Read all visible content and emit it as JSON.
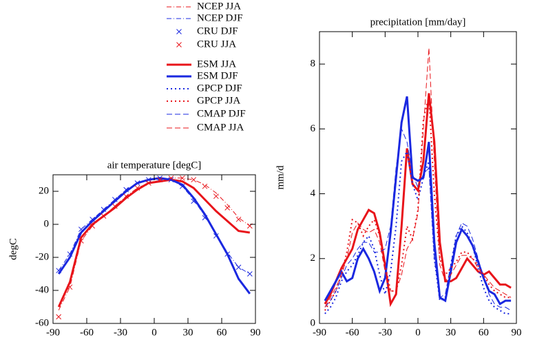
{
  "chart_data": [
    {
      "type": "line",
      "title": "air temperature [degC]",
      "y_label": "degC",
      "xlim": [
        -90,
        90
      ],
      "xticks": [
        -90,
        -60,
        -30,
        0,
        30,
        60,
        90
      ],
      "ylim": [
        -60,
        30
      ],
      "yticks": [
        -60,
        -40,
        -20,
        0,
        20
      ],
      "x": [
        -85,
        -75,
        -65,
        -55,
        -45,
        -35,
        -25,
        -15,
        -5,
        5,
        15,
        25,
        35,
        45,
        55,
        65,
        75,
        85
      ],
      "series": [
        {
          "name": "NCEP JJA",
          "color": "#e8141a",
          "style": "dashdot",
          "width": 1,
          "values": [
            -52,
            -38,
            -10,
            -1,
            5,
            11,
            17,
            22,
            25,
            27,
            28,
            28,
            27,
            24,
            19,
            12,
            4,
            -1
          ]
        },
        {
          "name": "NCEP DJF",
          "color": "#1a28e0",
          "style": "dashdot",
          "width": 1,
          "values": [
            -28,
            -18,
            -3,
            3,
            9,
            15,
            21,
            25,
            27,
            28,
            27,
            23,
            15,
            5,
            -6,
            -17,
            -26,
            -30
          ]
        },
        {
          "name": "CRU DJF",
          "color": "#1a28e0",
          "style": "markers",
          "width": 1,
          "values": [
            -28,
            -18,
            -3,
            3,
            9,
            15,
            21,
            25,
            27,
            28,
            27,
            23,
            14,
            4,
            -7,
            -18,
            -26,
            -30
          ]
        },
        {
          "name": "CRU JJA",
          "color": "#e8141a",
          "style": "markers",
          "width": 1,
          "values": [
            -56,
            -38,
            -10,
            -1,
            5,
            11,
            17,
            22,
            25,
            27,
            28,
            28,
            27,
            23,
            17,
            10,
            3,
            -1
          ]
        },
        {
          "name": "ESM JJA",
          "color": "#e8141a",
          "style": "solid",
          "width": 3,
          "values": [
            -50,
            -35,
            -8,
            0,
            5,
            10,
            16,
            21,
            25,
            26,
            27,
            26,
            22,
            15,
            8,
            2,
            -4,
            -5
          ]
        },
        {
          "name": "ESM DJF",
          "color": "#1a28e0",
          "style": "solid",
          "width": 3,
          "values": [
            -30,
            -20,
            -5,
            2,
            8,
            14,
            20,
            25,
            27,
            28,
            27,
            24,
            16,
            6,
            -6,
            -18,
            -33,
            -42
          ]
        }
      ]
    },
    {
      "type": "line",
      "title": "precipitation [mm/day]",
      "y_label": "mm/d",
      "xlim": [
        -90,
        90
      ],
      "xticks": [
        -90,
        -60,
        -30,
        0,
        30,
        60,
        90
      ],
      "ylim": [
        0,
        9
      ],
      "yticks": [
        0,
        2,
        4,
        6,
        8
      ],
      "x": [
        -85,
        -80,
        -75,
        -70,
        -65,
        -60,
        -55,
        -50,
        -45,
        -40,
        -35,
        -30,
        -25,
        -20,
        -15,
        -10,
        -5,
        0,
        5,
        10,
        15,
        20,
        25,
        30,
        35,
        40,
        45,
        50,
        55,
        60,
        65,
        70,
        75,
        80,
        85
      ],
      "series": [
        {
          "name": "ESM JJA",
          "color": "#e8141a",
          "style": "solid",
          "width": 3,
          "values": [
            0.6,
            0.9,
            1.3,
            1.7,
            2.0,
            2.3,
            2.9,
            3.2,
            3.5,
            3.4,
            2.8,
            1.8,
            0.6,
            0.9,
            3.0,
            5.4,
            4.3,
            4.1,
            5.0,
            7.1,
            5.6,
            2.5,
            1.3,
            1.3,
            1.4,
            1.7,
            2.0,
            1.8,
            1.6,
            1.5,
            1.6,
            1.4,
            1.2,
            1.2,
            1.1
          ]
        },
        {
          "name": "ESM DJF",
          "color": "#1a28e0",
          "style": "solid",
          "width": 3,
          "values": [
            0.7,
            1.0,
            1.3,
            1.6,
            1.3,
            1.4,
            2.0,
            2.3,
            2.0,
            1.6,
            1.0,
            1.4,
            2.8,
            4.5,
            6.2,
            7.0,
            4.5,
            4.4,
            4.5,
            5.6,
            2.5,
            0.8,
            0.7,
            1.6,
            2.5,
            2.9,
            2.7,
            2.4,
            1.9,
            1.4,
            1.0,
            0.9,
            0.6,
            0.7,
            0.7
          ]
        },
        {
          "name": "GPCP DJF",
          "color": "#1a28e0",
          "style": "dotted",
          "width": 2,
          "values": [
            0.3,
            0.5,
            0.8,
            1.3,
            1.6,
            1.8,
            2.1,
            2.5,
            2.7,
            2.3,
            1.5,
            0.9,
            1.6,
            3.0,
            5.0,
            5.3,
            4.3,
            3.8,
            4.5,
            5.0,
            2.0,
            0.7,
            0.8,
            1.8,
            2.7,
            3.0,
            2.8,
            2.4,
            1.7,
            1.1,
            0.7,
            0.5,
            0.4,
            0.3,
            0.3
          ]
        },
        {
          "name": "GPCP JJA",
          "color": "#e8141a",
          "style": "dotted",
          "width": 2,
          "values": [
            0.4,
            0.7,
            1.0,
            1.5,
            2.2,
            3.2,
            3.1,
            2.7,
            3.0,
            3.2,
            2.7,
            1.8,
            1.0,
            1.0,
            1.8,
            3.0,
            2.6,
            3.5,
            6.3,
            7.0,
            4.0,
            2.0,
            1.5,
            1.7,
            1.9,
            2.2,
            2.2,
            2.0,
            1.8,
            1.5,
            1.2,
            1.0,
            0.9,
            0.8,
            0.8
          ]
        },
        {
          "name": "CMAP DJF",
          "color": "#1a28e0",
          "style": "dashed",
          "width": 1,
          "values": [
            0.5,
            0.7,
            1.0,
            1.4,
            1.8,
            2.0,
            2.3,
            2.5,
            2.5,
            2.2,
            2.2,
            2.3,
            3.0,
            4.8,
            6.0,
            5.6,
            4.6,
            4.2,
            4.6,
            4.8,
            2.0,
            0.8,
            0.9,
            1.8,
            2.7,
            3.1,
            3.0,
            2.6,
            2.0,
            1.4,
            0.9,
            0.6,
            0.5,
            0.5,
            0.4
          ]
        },
        {
          "name": "CMAP JJA",
          "color": "#e8141a",
          "style": "dashed",
          "width": 1,
          "values": [
            0.5,
            0.8,
            1.1,
            1.5,
            2.0,
            2.8,
            3.1,
            2.9,
            2.8,
            2.9,
            2.5,
            1.6,
            1.0,
            1.0,
            1.5,
            2.3,
            2.6,
            3.4,
            6.0,
            8.5,
            5.0,
            1.8,
            1.3,
            1.5,
            1.8,
            2.1,
            2.1,
            2.0,
            1.7,
            1.5,
            1.3,
            1.1,
            1.0,
            0.9,
            0.8
          ]
        }
      ]
    }
  ]
}
